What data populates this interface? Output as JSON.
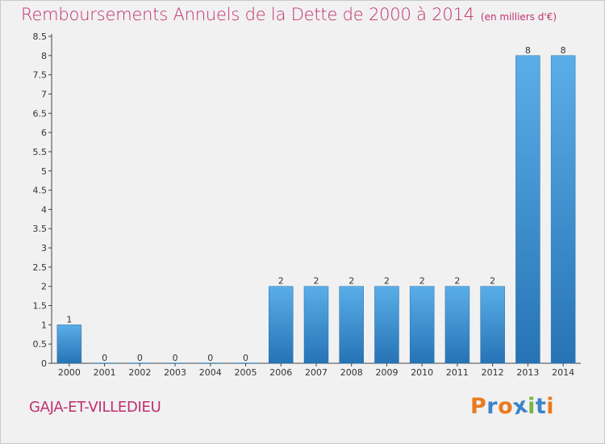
{
  "header": {
    "title": "Remboursements Annuels de la Dette de 2000 à 2014",
    "unit": "(en milliers d'€)"
  },
  "footer": {
    "commune": "GAJA-ET-VILLEDIEU",
    "logo": [
      "P",
      "r",
      "o",
      "x",
      "i",
      "t",
      "i"
    ]
  },
  "colors": {
    "title": "#c0306e",
    "bar_top": "#5aaee8",
    "bar_bottom": "#2673b5",
    "logo": [
      "#e97a1f",
      "#3a86c8",
      "#e97a1f",
      "#3a86c8",
      "#7cb342",
      "#3a86c8",
      "#e97a1f"
    ]
  },
  "chart_data": {
    "type": "bar",
    "title": "Remboursements Annuels de la Dette de 2000 à 2014",
    "ylabel": "en milliers d'€",
    "xlabel": "",
    "categories": [
      "2000",
      "2001",
      "2002",
      "2003",
      "2004",
      "2005",
      "2006",
      "2007",
      "2008",
      "2009",
      "2010",
      "2011",
      "2012",
      "2013",
      "2014"
    ],
    "values": [
      1,
      0,
      0,
      0,
      0,
      0,
      2,
      2,
      2,
      2,
      2,
      2,
      2,
      8,
      8
    ],
    "ylim": [
      0,
      8.5
    ],
    "yticks": [
      "0",
      "0.5",
      "1",
      "1.5",
      "2",
      "2.5",
      "3",
      "3.5",
      "4",
      "4.5",
      "5",
      "5.5",
      "6",
      "6.5",
      "7",
      "7.5",
      "8",
      "8.5"
    ],
    "ytick_values": [
      0,
      0.5,
      1,
      1.5,
      2,
      2.5,
      3,
      3.5,
      4,
      4.5,
      5,
      5.5,
      6,
      6.5,
      7,
      7.5,
      8,
      8.5
    ],
    "grid": false
  }
}
